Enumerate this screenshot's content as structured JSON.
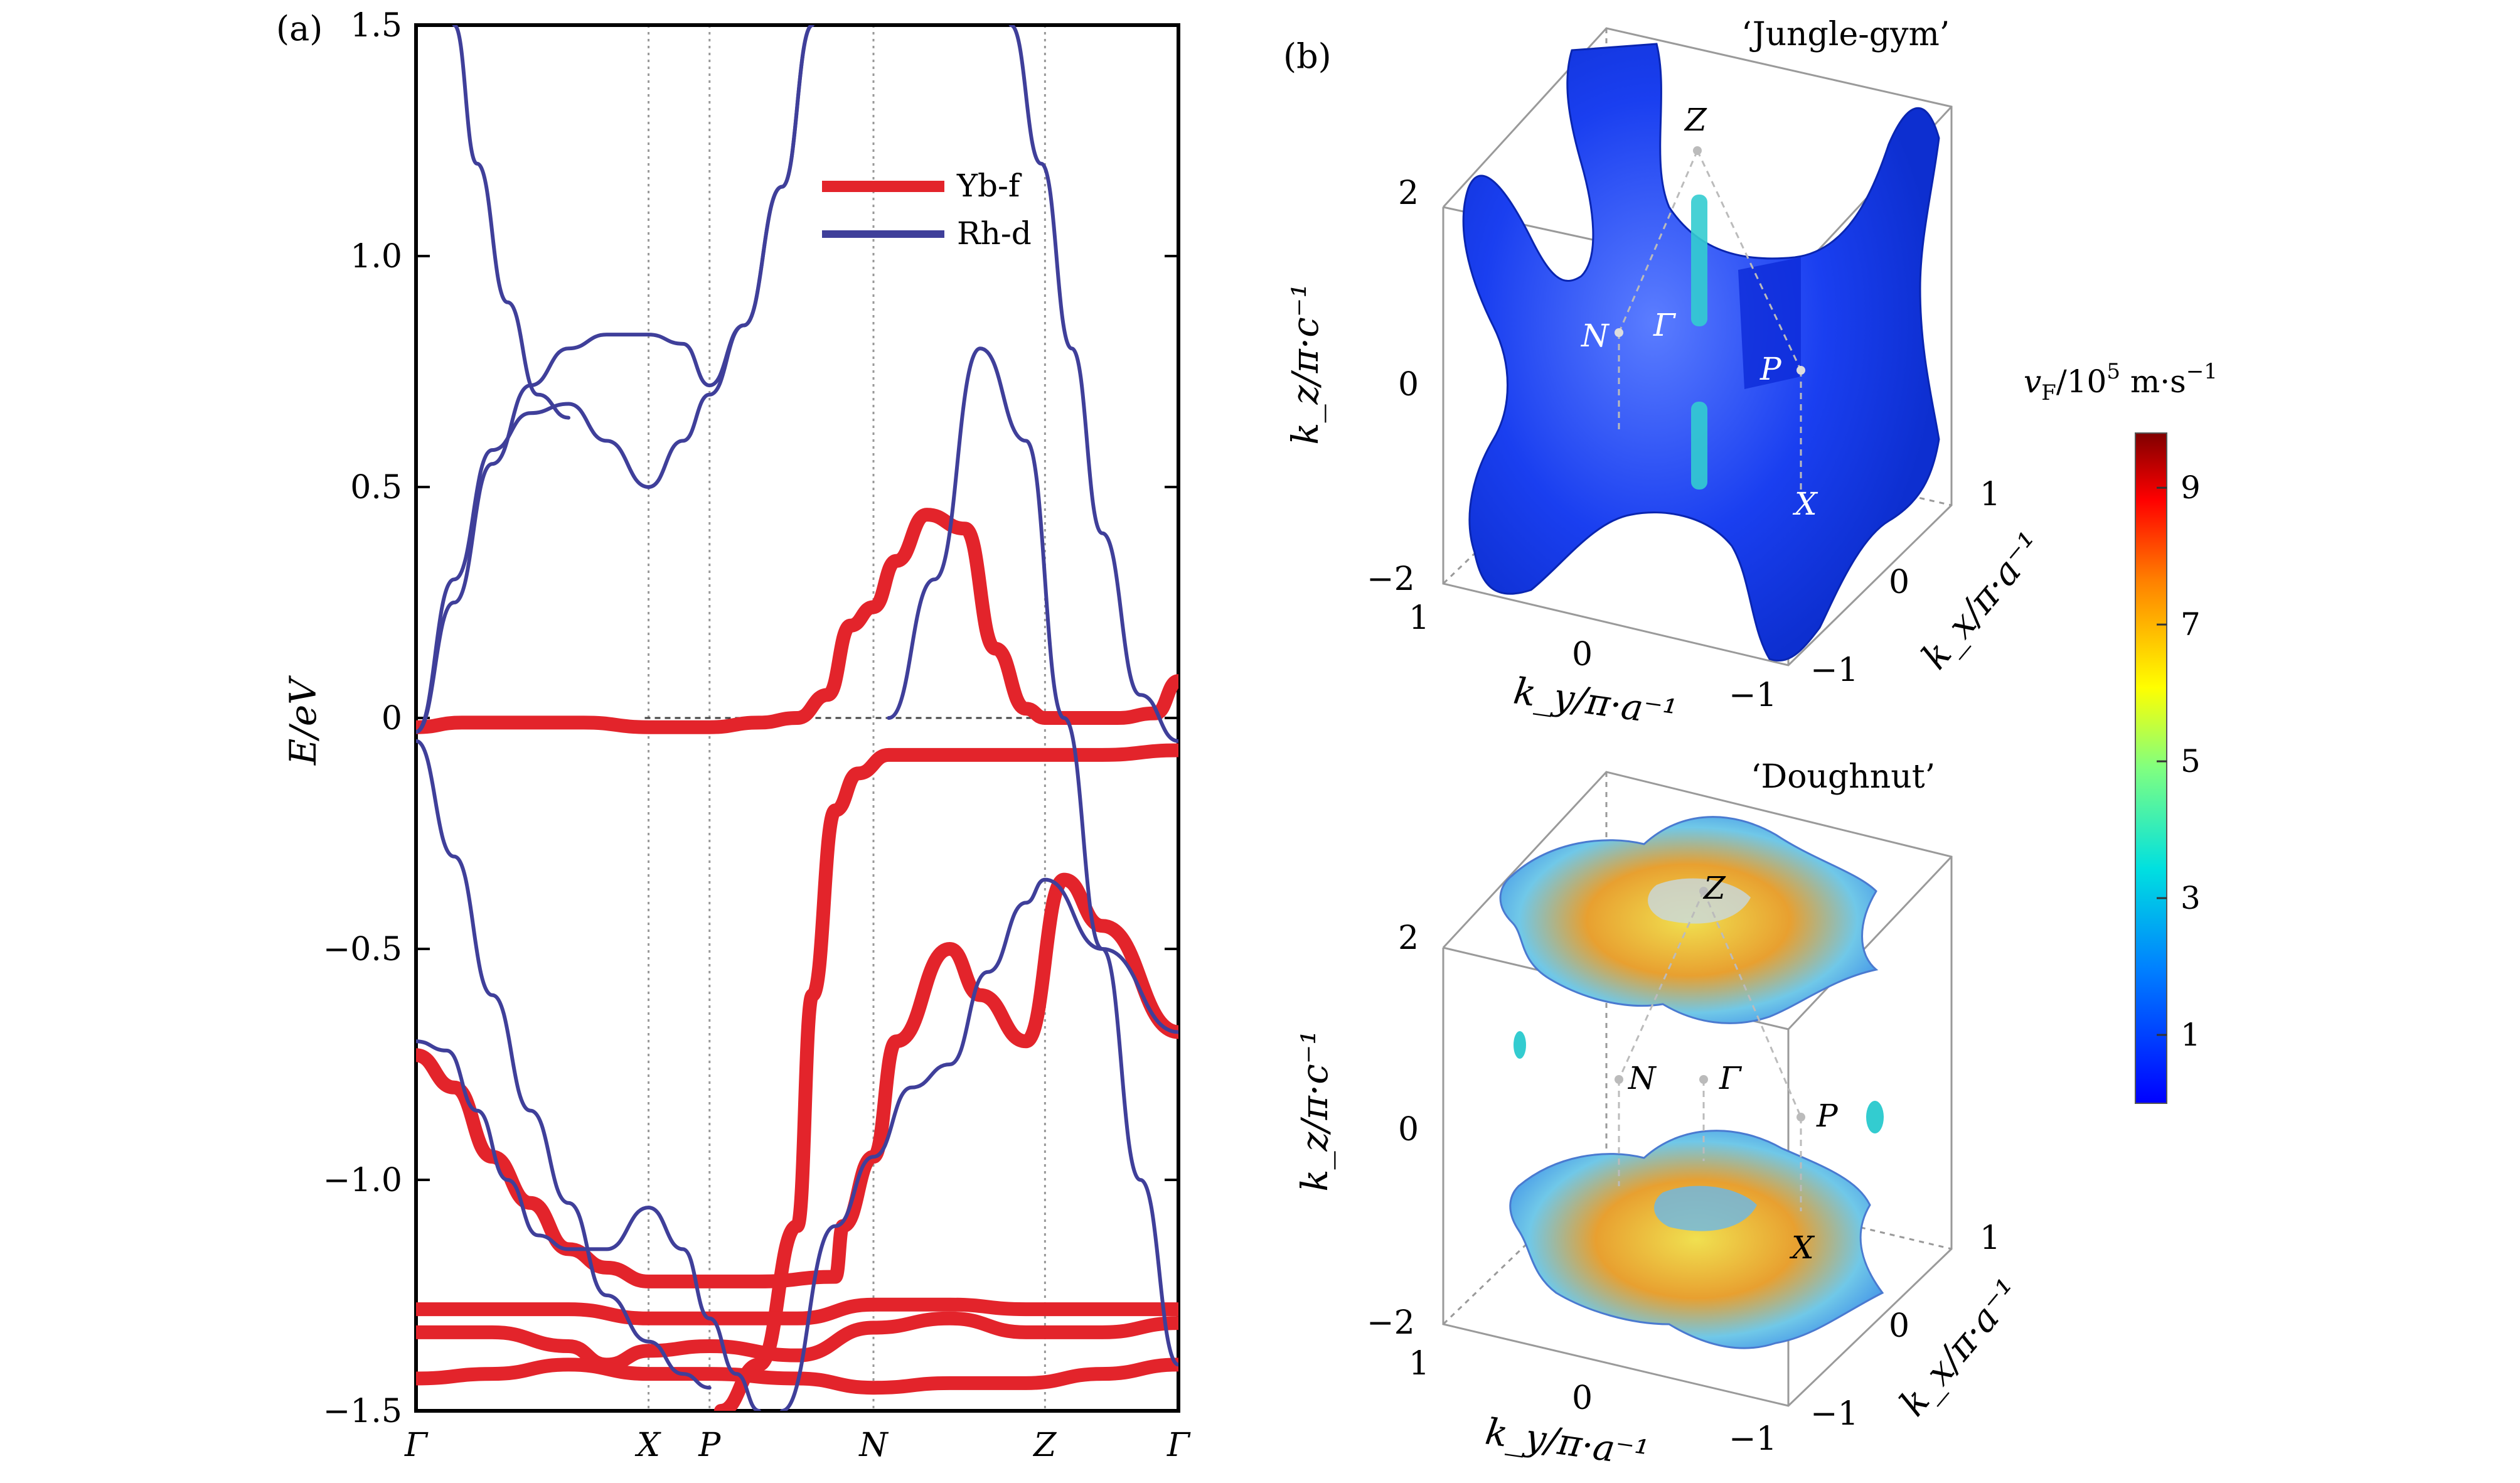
{
  "panels": {
    "a_label": "(a)",
    "b_label": "(b)"
  },
  "chart_data": [
    {
      "type": "line",
      "panel": "(a)",
      "title": "",
      "xlabel": "",
      "ylabel": "E/eV",
      "ylim": [
        -1.5,
        1.5
      ],
      "yticks": [
        1.5,
        1.0,
        0.5,
        0,
        -0.5,
        -1.0,
        -1.5
      ],
      "ytick_labels": [
        "1.5",
        "1.0",
        "0.5",
        "0",
        "−0.5",
        "−1.0",
        "−1.5"
      ],
      "xlim": [
        0,
        1
      ],
      "high_symmetry_points": [
        {
          "label": "Γ",
          "x": 0.0
        },
        {
          "label": "X",
          "x": 0.305
        },
        {
          "label": "P",
          "x": 0.385
        },
        {
          "label": "N",
          "x": 0.6
        },
        {
          "label": "Z",
          "x": 0.825
        },
        {
          "label": "Γ",
          "x": 1.0
        }
      ],
      "fermi_level": 0,
      "legend_position": "top-right",
      "series": [
        {
          "name": "Yb-f",
          "color": "#e3242b",
          "curves": [
            [
              [
                0,
                -0.02
              ],
              [
                0.06,
                -0.01
              ],
              [
                0.15,
                -0.01
              ],
              [
                0.22,
                -0.01
              ],
              [
                0.305,
                -0.02
              ],
              [
                0.385,
                -0.02
              ],
              [
                0.45,
                -0.01
              ],
              [
                0.5,
                0.0
              ],
              [
                0.54,
                0.05
              ],
              [
                0.57,
                0.2
              ],
              [
                0.6,
                0.24
              ],
              [
                0.63,
                0.34
              ],
              [
                0.67,
                0.44
              ],
              [
                0.72,
                0.41
              ],
              [
                0.76,
                0.15
              ],
              [
                0.8,
                0.02
              ],
              [
                0.825,
                0.0
              ],
              [
                0.92,
                0.0
              ],
              [
                0.97,
                0.01
              ],
              [
                1.0,
                0.08
              ]
            ],
            [
              [
                0.4,
                -1.5
              ],
              [
                0.45,
                -1.4
              ],
              [
                0.5,
                -1.1
              ],
              [
                0.52,
                -0.6
              ],
              [
                0.55,
                -0.2
              ],
              [
                0.58,
                -0.12
              ],
              [
                0.62,
                -0.08
              ],
              [
                0.7,
                -0.08
              ],
              [
                0.8,
                -0.08
              ],
              [
                0.9,
                -0.08
              ],
              [
                1.0,
                -0.07
              ]
            ],
            [
              [
                0.0,
                -0.73
              ],
              [
                0.05,
                -0.8
              ],
              [
                0.1,
                -0.95
              ],
              [
                0.15,
                -1.05
              ],
              [
                0.2,
                -1.15
              ],
              [
                0.25,
                -1.19
              ],
              [
                0.305,
                -1.22
              ],
              [
                0.385,
                -1.22
              ],
              [
                0.45,
                -1.22
              ],
              [
                0.55,
                -1.21
              ],
              [
                0.56,
                -1.1
              ],
              [
                0.6,
                -0.95
              ],
              [
                0.63,
                -0.7
              ],
              [
                0.7,
                -0.5
              ],
              [
                0.74,
                -0.6
              ],
              [
                0.8,
                -0.7
              ],
              [
                0.85,
                -0.35
              ],
              [
                0.9,
                -0.45
              ],
              [
                1.0,
                -0.68
              ]
            ],
            [
              [
                0.0,
                -1.28
              ],
              [
                0.1,
                -1.28
              ],
              [
                0.2,
                -1.28
              ],
              [
                0.305,
                -1.3
              ],
              [
                0.385,
                -1.3
              ],
              [
                0.5,
                -1.3
              ],
              [
                0.6,
                -1.27
              ],
              [
                0.7,
                -1.27
              ],
              [
                0.8,
                -1.28
              ],
              [
                0.9,
                -1.28
              ],
              [
                1.0,
                -1.28
              ]
            ],
            [
              [
                0.0,
                -1.33
              ],
              [
                0.1,
                -1.33
              ],
              [
                0.2,
                -1.36
              ],
              [
                0.25,
                -1.4
              ],
              [
                0.305,
                -1.37
              ],
              [
                0.385,
                -1.36
              ],
              [
                0.5,
                -1.38
              ],
              [
                0.6,
                -1.32
              ],
              [
                0.7,
                -1.3
              ],
              [
                0.8,
                -1.33
              ],
              [
                0.9,
                -1.33
              ],
              [
                1.0,
                -1.31
              ]
            ],
            [
              [
                0.0,
                -1.43
              ],
              [
                0.1,
                -1.42
              ],
              [
                0.2,
                -1.4
              ],
              [
                0.305,
                -1.42
              ],
              [
                0.385,
                -1.42
              ],
              [
                0.5,
                -1.43
              ],
              [
                0.6,
                -1.45
              ],
              [
                0.7,
                -1.44
              ],
              [
                0.8,
                -1.44
              ],
              [
                0.9,
                -1.42
              ],
              [
                1.0,
                -1.4
              ]
            ]
          ]
        },
        {
          "name": "Rh-d",
          "color": "#3f3f9a",
          "curves": [
            [
              [
                0.0,
                -0.03
              ],
              [
                0.05,
                0.25
              ],
              [
                0.1,
                0.55
              ],
              [
                0.15,
                0.72
              ],
              [
                0.2,
                0.8
              ],
              [
                0.25,
                0.83
              ],
              [
                0.305,
                0.83
              ],
              [
                0.35,
                0.81
              ],
              [
                0.385,
                0.72
              ],
              [
                0.43,
                0.85
              ],
              [
                0.48,
                1.15
              ],
              [
                0.52,
                1.5
              ]
            ],
            [
              [
                0.0,
                -0.03
              ],
              [
                0.05,
                0.3
              ],
              [
                0.1,
                0.58
              ],
              [
                0.15,
                0.66
              ],
              [
                0.2,
                0.68
              ],
              [
                0.25,
                0.6
              ],
              [
                0.305,
                0.5
              ],
              [
                0.35,
                0.6
              ],
              [
                0.385,
                0.7
              ],
              [
                0.43,
                0.85
              ],
              [
                0.48,
                1.15
              ],
              [
                0.52,
                1.5
              ]
            ],
            [
              [
                0.05,
                1.5
              ],
              [
                0.08,
                1.2
              ],
              [
                0.12,
                0.9
              ],
              [
                0.16,
                0.7
              ],
              [
                0.2,
                0.65
              ]
            ],
            [
              [
                0.62,
                0.0
              ],
              [
                0.68,
                0.3
              ],
              [
                0.74,
                0.8
              ],
              [
                0.8,
                0.6
              ],
              [
                0.85,
                0.0
              ],
              [
                0.9,
                -0.5
              ],
              [
                0.95,
                -1.0
              ],
              [
                1.0,
                -1.4
              ]
            ],
            [
              [
                0.78,
                1.5
              ],
              [
                0.82,
                1.2
              ],
              [
                0.86,
                0.8
              ],
              [
                0.9,
                0.4
              ],
              [
                0.95,
                0.05
              ],
              [
                1.0,
                -0.05
              ]
            ],
            [
              [
                0.0,
                -0.7
              ],
              [
                0.04,
                -0.72
              ],
              [
                0.08,
                -0.85
              ],
              [
                0.12,
                -1.0
              ],
              [
                0.16,
                -1.12
              ],
              [
                0.2,
                -1.15
              ],
              [
                0.25,
                -1.15
              ],
              [
                0.305,
                -1.06
              ],
              [
                0.35,
                -1.15
              ],
              [
                0.385,
                -1.3
              ],
              [
                0.42,
                -1.42
              ],
              [
                0.45,
                -1.5
              ]
            ],
            [
              [
                0.0,
                -0.05
              ],
              [
                0.05,
                -0.3
              ],
              [
                0.1,
                -0.6
              ],
              [
                0.15,
                -0.85
              ],
              [
                0.2,
                -1.05
              ],
              [
                0.25,
                -1.25
              ],
              [
                0.305,
                -1.35
              ],
              [
                0.35,
                -1.42
              ],
              [
                0.385,
                -1.45
              ]
            ],
            [
              [
                0.48,
                -1.5
              ],
              [
                0.55,
                -1.1
              ],
              [
                0.6,
                -0.95
              ],
              [
                0.65,
                -0.8
              ],
              [
                0.7,
                -0.75
              ],
              [
                0.75,
                -0.55
              ],
              [
                0.8,
                -0.4
              ],
              [
                0.825,
                -0.35
              ],
              [
                0.9,
                -0.5
              ],
              [
                1.0,
                -0.68
              ]
            ]
          ]
        }
      ]
    },
    {
      "type": "surface3d",
      "panel": "(b) top",
      "title": "‘Jungle-gym’",
      "xlabel": "k_y/π·a⁻¹",
      "ylabel": "k_x/π·a⁻¹",
      "zlabel": "k_z/π·c⁻¹",
      "z_ticks": [
        "2",
        "0",
        "−2"
      ],
      "ky_ticks": [
        "1",
        "0",
        "−1"
      ],
      "kx_ticks": [
        "1",
        "0",
        "−1"
      ],
      "points": [
        "Z",
        "N",
        "Γ",
        "P",
        "X"
      ]
    },
    {
      "type": "surface3d",
      "panel": "(b) bottom",
      "title": "‘Doughnut’",
      "xlabel": "k_y/π·a⁻¹",
      "ylabel": "k_x/π·a⁻¹",
      "zlabel": "k_z/π·c⁻¹",
      "z_ticks": [
        "2",
        "0",
        "−2"
      ],
      "ky_ticks": [
        "1",
        "0",
        "−1"
      ],
      "kx_ticks": [
        "1",
        "0",
        "−1"
      ],
      "points": [
        "Z",
        "N",
        "Γ",
        "P",
        "X"
      ]
    }
  ],
  "colorbar": {
    "label_main": "v",
    "label_sub": "F",
    "label_rest": "/10",
    "label_exp": "5",
    "label_unit": " m·s",
    "label_unit_exp": "−1",
    "ticks": [
      "9",
      "7",
      "5",
      "3",
      "1"
    ],
    "tick_values": [
      9,
      7,
      5,
      3,
      1
    ],
    "range": [
      0,
      9.8
    ]
  },
  "colors": {
    "yb_f": "#e3242b",
    "rh_d": "#3f3f9a",
    "jungle_gym_surface": "#1a3ff0",
    "doughnut_warm": "#e8c43a"
  }
}
